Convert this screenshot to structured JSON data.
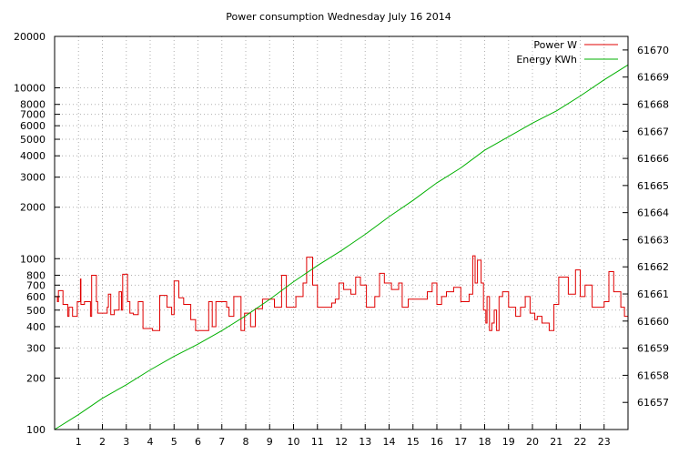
{
  "chart_data": {
    "type": "line",
    "title": "Power consumption Wednesday July 16 2014",
    "grid": true,
    "legend_placement": "top-right",
    "x_axis": {
      "range": [
        0,
        24
      ],
      "ticks": [
        1,
        2,
        3,
        4,
        5,
        6,
        7,
        8,
        9,
        10,
        11,
        12,
        13,
        14,
        15,
        16,
        17,
        18,
        19,
        20,
        21,
        22,
        23
      ]
    },
    "y_axis_left": {
      "scale": "log",
      "range": [
        100,
        20000
      ],
      "ticks": [
        100,
        200,
        300,
        400,
        500,
        600,
        700,
        800,
        1000,
        2000,
        3000,
        4000,
        5000,
        6000,
        7000,
        8000,
        10000,
        20000
      ]
    },
    "y_axis_right": {
      "scale": "linear",
      "range": [
        61656.0,
        61670.5
      ],
      "ticks": [
        61657,
        61658,
        61659,
        61660,
        61661,
        61662,
        61663,
        61664,
        61665,
        61666,
        61667,
        61668,
        61669,
        61670
      ]
    },
    "series": [
      {
        "name": "Power W",
        "axis": "left",
        "color": "#e00000",
        "x": [
          0.0,
          0.12,
          0.16,
          0.35,
          0.55,
          0.6,
          0.75,
          0.95,
          1.08,
          1.1,
          1.25,
          1.5,
          1.55,
          1.75,
          1.8,
          2.0,
          2.2,
          2.25,
          2.35,
          2.5,
          2.7,
          2.8,
          2.85,
          3.05,
          3.15,
          3.3,
          3.5,
          3.7,
          4.1,
          4.4,
          4.7,
          4.9,
          5.0,
          5.2,
          5.4,
          5.7,
          5.9,
          6.2,
          6.45,
          6.6,
          6.75,
          7.0,
          7.2,
          7.3,
          7.5,
          7.8,
          7.95,
          8.2,
          8.4,
          8.7,
          9.05,
          9.2,
          9.5,
          9.7,
          10.1,
          10.4,
          10.55,
          10.8,
          11.0,
          11.3,
          11.6,
          11.75,
          11.9,
          12.1,
          12.4,
          12.6,
          12.8,
          13.05,
          13.4,
          13.6,
          13.8,
          14.1,
          14.4,
          14.55,
          14.8,
          15.2,
          15.6,
          15.8,
          16.0,
          16.2,
          16.4,
          16.7,
          17.0,
          17.25,
          17.35,
          17.5,
          17.6,
          17.7,
          17.85,
          17.95,
          18.05,
          18.1,
          18.2,
          18.3,
          18.4,
          18.5,
          18.6,
          18.75,
          19.0,
          19.3,
          19.5,
          19.7,
          19.9,
          20.1,
          20.2,
          20.4,
          20.7,
          20.9,
          21.1,
          21.5,
          21.8,
          22.0,
          22.2,
          22.5,
          22.8,
          23.0,
          23.2,
          23.4,
          23.7,
          23.85,
          24.0
        ],
        "values": [
          600,
          560,
          650,
          540,
          460,
          520,
          460,
          560,
          760,
          540,
          560,
          460,
          800,
          560,
          480,
          480,
          520,
          620,
          470,
          500,
          640,
          500,
          810,
          560,
          480,
          470,
          560,
          390,
          380,
          610,
          520,
          470,
          740,
          590,
          540,
          440,
          380,
          380,
          560,
          400,
          560,
          560,
          520,
          460,
          600,
          380,
          480,
          400,
          510,
          580,
          580,
          520,
          800,
          520,
          600,
          720,
          1020,
          700,
          520,
          520,
          550,
          580,
          720,
          660,
          620,
          780,
          700,
          520,
          600,
          820,
          720,
          660,
          720,
          520,
          580,
          580,
          640,
          720,
          540,
          600,
          640,
          680,
          560,
          560,
          620,
          1040,
          720,
          980,
          720,
          500,
          420,
          600,
          380,
          420,
          500,
          380,
          600,
          640,
          520,
          460,
          520,
          600,
          480,
          440,
          460,
          420,
          380,
          540,
          780,
          620,
          860,
          600,
          700,
          520,
          520,
          560,
          840,
          640,
          520,
          460,
          520
        ]
      },
      {
        "name": "Energy KWh",
        "axis": "right",
        "color": "#00b000",
        "x": [
          0,
          1,
          2,
          3,
          4,
          5,
          6,
          7,
          8,
          9,
          10,
          11,
          12,
          13,
          14,
          15,
          16,
          17,
          18,
          19,
          20,
          21,
          22,
          23,
          24
        ],
        "values": [
          61656.0,
          61656.55,
          61657.15,
          61657.65,
          61658.2,
          61658.7,
          61659.15,
          61659.65,
          61660.2,
          61660.8,
          61661.45,
          61662.05,
          61662.6,
          61663.2,
          61663.85,
          61664.45,
          61665.1,
          61665.65,
          61666.3,
          61666.8,
          61667.3,
          61667.75,
          61668.3,
          61668.9,
          61669.45
        ]
      }
    ]
  }
}
